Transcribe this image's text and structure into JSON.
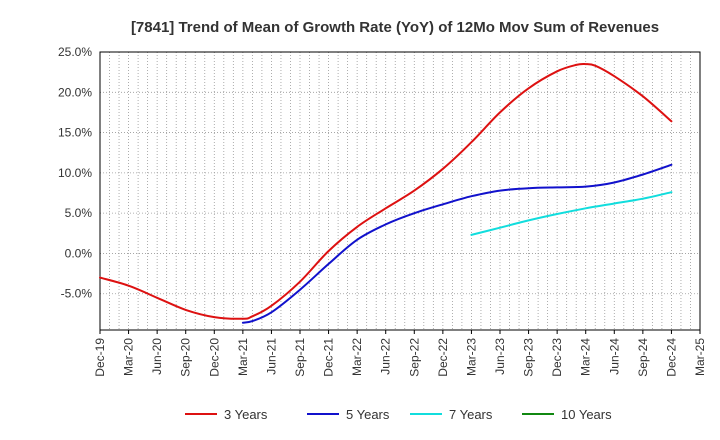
{
  "chart_data": {
    "type": "line",
    "title": "[7841]  Trend of Mean of Growth Rate (YoY) of 12Mo Mov Sum of Revenues",
    "xlabel": "",
    "ylabel": "",
    "ylim": [
      -9.5,
      25.0
    ],
    "y_ticks": [
      25.0,
      20.0,
      15.0,
      10.0,
      5.0,
      0.0,
      -5.0
    ],
    "y_tick_labels": [
      "25.0%",
      "20.0%",
      "15.0%",
      "10.0%",
      "5.0%",
      "0.0%",
      "-5.0%"
    ],
    "x_tick_labels": [
      "Dec-19",
      "Mar-20",
      "Jun-20",
      "Sep-20",
      "Dec-20",
      "Mar-21",
      "Jun-21",
      "Sep-21",
      "Dec-21",
      "Mar-22",
      "Jun-22",
      "Sep-22",
      "Dec-22",
      "Mar-23",
      "Jun-23",
      "Sep-23",
      "Dec-23",
      "Mar-24",
      "Jun-24",
      "Sep-24",
      "Dec-24",
      "Mar-25"
    ],
    "x_range_months": [
      0,
      63
    ],
    "grid": true,
    "legend_position": "bottom",
    "series": [
      {
        "name": "3 Years",
        "color": "#dd1111",
        "x": [
          0,
          3,
          6,
          9,
          12,
          15,
          16,
          18,
          21,
          24,
          27,
          30,
          33,
          36,
          39,
          42,
          45,
          48,
          50,
          51,
          52,
          54,
          57,
          60
        ],
        "values": [
          -3.0,
          -4.0,
          -5.5,
          -7.0,
          -7.9,
          -8.1,
          -7.8,
          -6.5,
          -3.5,
          0.3,
          3.3,
          5.6,
          7.8,
          10.5,
          13.8,
          17.5,
          20.5,
          22.6,
          23.4,
          23.5,
          23.3,
          22.0,
          19.5,
          16.4
        ]
      },
      {
        "name": "5 Years",
        "color": "#1111cc",
        "x": [
          15,
          16,
          18,
          21,
          24,
          27,
          30,
          33,
          36,
          39,
          42,
          45,
          48,
          51,
          54,
          57,
          60
        ],
        "values": [
          -8.6,
          -8.4,
          -7.3,
          -4.5,
          -1.3,
          1.7,
          3.6,
          5.0,
          6.1,
          7.1,
          7.8,
          8.1,
          8.2,
          8.3,
          8.8,
          9.8,
          11.0
        ]
      },
      {
        "name": "7 Years",
        "color": "#11dddd",
        "x": [
          39,
          42,
          45,
          48,
          51,
          54,
          57,
          60
        ],
        "values": [
          2.3,
          3.2,
          4.1,
          4.9,
          5.6,
          6.2,
          6.8,
          7.6
        ]
      },
      {
        "name": "10 Years",
        "color": "#118811",
        "x": [],
        "values": []
      }
    ]
  }
}
